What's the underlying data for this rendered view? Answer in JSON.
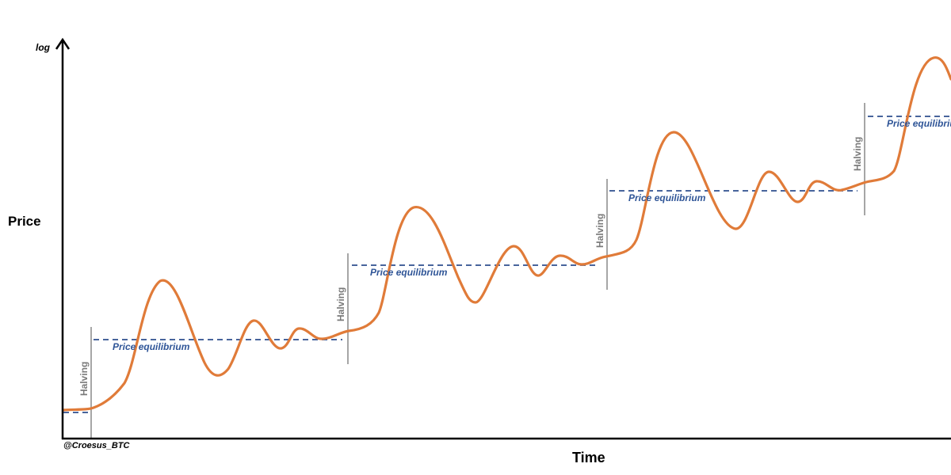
{
  "chart_data": {
    "type": "line",
    "title": "",
    "xlabel": "Time",
    "ylabel": "Price",
    "yscale": "log",
    "yscale_label": "log",
    "credit": "@Croesus_BTC",
    "grid": false,
    "colors": {
      "price_line": "#e07b39",
      "equilibrium": "#2f4f8f",
      "equilibrium_text": "#2f5597",
      "halving_line": "#a6a6a6",
      "halving_text": "#7a7a7a",
      "axis": "#000000"
    },
    "halvings": [
      {
        "label": "Halving"
      },
      {
        "label": "Halving"
      },
      {
        "label": "Halving"
      },
      {
        "label": "Halving"
      }
    ],
    "equilibrium_lines": [
      {
        "label": "Price equilibrium"
      },
      {
        "label": "Price equilibrium"
      },
      {
        "label": "Price equilibrium"
      },
      {
        "label": "Price equilibrium"
      }
    ]
  }
}
